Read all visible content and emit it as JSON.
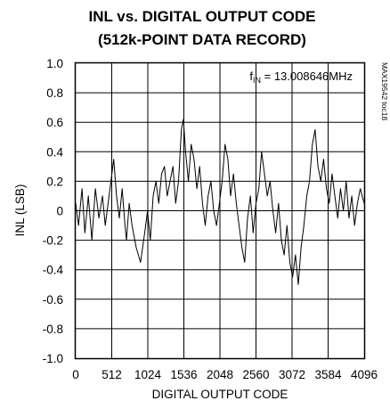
{
  "chart_data": {
    "type": "line",
    "title": "INL vs. DIGITAL OUTPUT CODE",
    "subtitle": "(512k-POINT DATA RECORD)",
    "xlabel": "DIGITAL OUTPUT CODE",
    "ylabel": "INL (LSB)",
    "xlim": [
      0,
      4096
    ],
    "ylim": [
      -1.0,
      1.0
    ],
    "x_ticks": [
      "0",
      "512",
      "1024",
      "1536",
      "2048",
      "2560",
      "3072",
      "3584",
      "4096"
    ],
    "y_ticks": [
      "1.0",
      "0.8",
      "0.6",
      "0.4",
      "0.2",
      "0",
      "-0.2",
      "-0.4",
      "-0.6",
      "-0.8",
      "-1.0"
    ],
    "grid": true,
    "annotation": {
      "prefix": "f",
      "subscript": "IN",
      "text": " = 13.008646MHz"
    },
    "part_number": "MAX19542 toc18",
    "series": [
      {
        "x": [
          0,
          40,
          90,
          130,
          180,
          230,
          280,
          330,
          380,
          420,
          460,
          500,
          540,
          580,
          620,
          660,
          700,
          720,
          760,
          800,
          860,
          920,
          980,
          1020,
          1060,
          1100,
          1140,
          1180,
          1220,
          1260,
          1300,
          1340,
          1380,
          1420,
          1460,
          1500,
          1530,
          1560,
          1600,
          1640,
          1680,
          1720,
          1760,
          1800,
          1840,
          1880,
          1920,
          1960,
          2000,
          2040,
          2080,
          2120,
          2160,
          2200,
          2240,
          2280,
          2320,
          2360,
          2400,
          2440,
          2480,
          2520,
          2560,
          2600,
          2640,
          2680,
          2720,
          2760,
          2800,
          2840,
          2880,
          2920,
          2960,
          3000,
          3040,
          3080,
          3120,
          3160,
          3200,
          3240,
          3280,
          3320,
          3360,
          3400,
          3440,
          3480,
          3520,
          3560,
          3600,
          3640,
          3680,
          3720,
          3760,
          3800,
          3840,
          3880,
          3920,
          3960,
          4000,
          4040,
          4096
        ],
        "y": [
          0.05,
          -0.1,
          0.15,
          -0.15,
          0.1,
          -0.2,
          0.15,
          -0.05,
          0.1,
          -0.1,
          0.05,
          0.2,
          0.35,
          0.1,
          -0.05,
          0.15,
          -0.1,
          -0.2,
          0.05,
          -0.1,
          -0.25,
          -0.35,
          -0.15,
          0.0,
          -0.2,
          0.1,
          0.2,
          0.05,
          0.25,
          0.3,
          0.1,
          0.2,
          0.3,
          0.05,
          0.2,
          0.55,
          0.62,
          0.4,
          0.2,
          0.45,
          0.35,
          0.15,
          0.3,
          0.05,
          -0.1,
          0.1,
          0.2,
          0.0,
          -0.1,
          0.05,
          0.2,
          0.45,
          0.35,
          0.1,
          0.25,
          0.05,
          -0.1,
          -0.25,
          -0.35,
          -0.05,
          0.1,
          -0.15,
          0.05,
          0.15,
          0.4,
          0.25,
          0.1,
          0.2,
          0.0,
          -0.15,
          0.05,
          -0.2,
          -0.3,
          -0.1,
          -0.35,
          -0.45,
          -0.3,
          -0.5,
          -0.25,
          -0.1,
          0.1,
          0.2,
          0.45,
          0.55,
          0.3,
          0.2,
          0.35,
          0.15,
          0.05,
          0.25,
          0.1,
          -0.05,
          0.15,
          0.0,
          0.2,
          -0.05,
          0.1,
          -0.1,
          0.05,
          0.15,
          0.05
        ]
      }
    ]
  }
}
